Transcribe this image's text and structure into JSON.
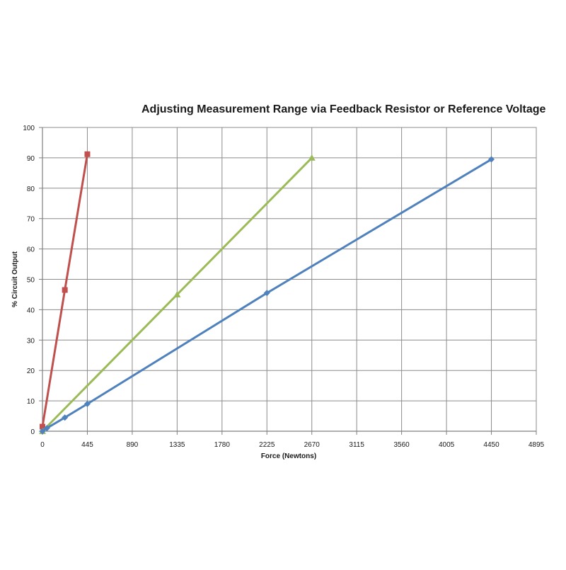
{
  "chart_data": {
    "type": "line",
    "title": "Adjusting  Measurement Range via Feedback Resistor or Reference Voltage",
    "xlabel": "Force (Newtons)",
    "ylabel": "% Circuit Output",
    "xlim": [
      0,
      4895
    ],
    "ylim": [
      0,
      100
    ],
    "x_ticks": [
      0,
      445,
      890,
      1335,
      1780,
      2225,
      2670,
      3115,
      3560,
      4005,
      4450,
      4895
    ],
    "y_ticks": [
      0,
      10,
      20,
      30,
      40,
      50,
      60,
      70,
      80,
      90,
      100
    ],
    "grid": true,
    "legend": "none",
    "series": [
      {
        "color": "#c0504d",
        "marker": "square",
        "points": [
          [
            0,
            1.5
          ],
          [
            222,
            46.5
          ],
          [
            445,
            91.2
          ]
        ]
      },
      {
        "color": "#9bbb59",
        "marker": "triangle",
        "points": [
          [
            0,
            0
          ],
          [
            1335,
            45
          ],
          [
            2670,
            90
          ]
        ]
      },
      {
        "color": "#4f81bd",
        "marker": "diamond",
        "points": [
          [
            0,
            0
          ],
          [
            44,
            1
          ],
          [
            222,
            4.5
          ],
          [
            445,
            9
          ],
          [
            2225,
            45.5
          ],
          [
            4450,
            89.5
          ]
        ]
      }
    ]
  }
}
